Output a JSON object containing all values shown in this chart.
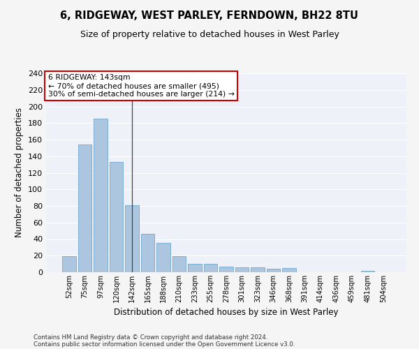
{
  "title": "6, RIDGEWAY, WEST PARLEY, FERNDOWN, BH22 8TU",
  "subtitle": "Size of property relative to detached houses in West Parley",
  "xlabel": "Distribution of detached houses by size in West Parley",
  "ylabel": "Number of detached properties",
  "bar_color": "#adc6e0",
  "bar_edge_color": "#6fa8d0",
  "background_color": "#eef2f8",
  "grid_color": "#ffffff",
  "categories": [
    "52sqm",
    "75sqm",
    "97sqm",
    "120sqm",
    "142sqm",
    "165sqm",
    "188sqm",
    "210sqm",
    "233sqm",
    "255sqm",
    "278sqm",
    "301sqm",
    "323sqm",
    "346sqm",
    "368sqm",
    "391sqm",
    "414sqm",
    "436sqm",
    "459sqm",
    "481sqm",
    "504sqm"
  ],
  "values": [
    19,
    154,
    185,
    133,
    81,
    46,
    35,
    19,
    10,
    10,
    7,
    6,
    6,
    4,
    5,
    0,
    0,
    0,
    0,
    2,
    0
  ],
  "vline_x": 4,
  "vline_color": "#444444",
  "annotation_text": "6 RIDGEWAY: 143sqm\n← 70% of detached houses are smaller (495)\n30% of semi-detached houses are larger (214) →",
  "annotation_box_color": "#ffffff",
  "annotation_box_edgecolor": "#cc0000",
  "ylim": [
    0,
    240
  ],
  "yticks": [
    0,
    20,
    40,
    60,
    80,
    100,
    120,
    140,
    160,
    180,
    200,
    220,
    240
  ],
  "footer_line1": "Contains HM Land Registry data © Crown copyright and database right 2024.",
  "footer_line2": "Contains public sector information licensed under the Open Government Licence v3.0."
}
